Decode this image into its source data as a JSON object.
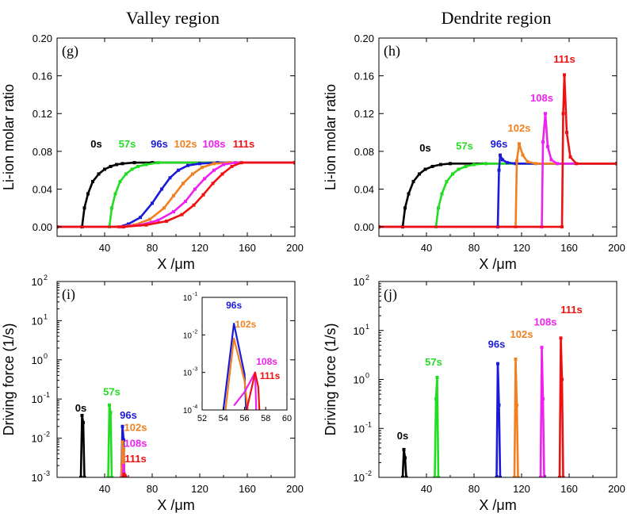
{
  "headers": {
    "left": "Valley region",
    "right": "Dendrite region"
  },
  "colors": {
    "0s": "#000000",
    "57s": "#22dd22",
    "96s": "#1a1ad8",
    "102s": "#f08020",
    "108s": "#ee22ee",
    "111s": "#ee1111"
  },
  "chart_data": [
    {
      "id": "g",
      "panel_label": "(g)",
      "type": "line",
      "title": "Valley region",
      "xlabel": "X /μm",
      "ylabel": "Li-ion molar ratio",
      "xlim": [
        0,
        200
      ],
      "ylim": [
        -0.01,
        0.2
      ],
      "xticks": [
        "40",
        "80",
        "120",
        "160",
        "200"
      ],
      "xtick_values": [
        40,
        80,
        120,
        160,
        200
      ],
      "yticks": [
        "0.00",
        "0.04",
        "0.08",
        "0.12",
        "0.16",
        "0.20"
      ],
      "ytick_values": [
        0,
        0.04,
        0.08,
        0.12,
        0.16,
        0.2
      ],
      "series": [
        {
          "name": "0s",
          "x": [
            0,
            21,
            23,
            26,
            30,
            35,
            40,
            45,
            50,
            55,
            65,
            80,
            200
          ],
          "y": [
            0,
            0,
            0.02,
            0.035,
            0.048,
            0.056,
            0.061,
            0.064,
            0.066,
            0.067,
            0.068,
            0.068,
            0.068
          ]
        },
        {
          "name": "57s",
          "x": [
            0,
            44,
            46,
            49,
            53,
            58,
            63,
            68,
            75,
            85,
            200
          ],
          "y": [
            0,
            0,
            0.02,
            0.035,
            0.048,
            0.056,
            0.061,
            0.064,
            0.066,
            0.068,
            0.068
          ]
        },
        {
          "name": "96s",
          "x": [
            0,
            52,
            60,
            70,
            80,
            88,
            95,
            102,
            110,
            120,
            135,
            200
          ],
          "y": [
            0,
            0,
            0.003,
            0.01,
            0.025,
            0.04,
            0.052,
            0.06,
            0.065,
            0.067,
            0.068,
            0.068
          ]
        },
        {
          "name": "102s",
          "x": [
            0,
            52,
            65,
            78,
            90,
            98,
            106,
            114,
            122,
            132,
            145,
            200
          ],
          "y": [
            0,
            0,
            0.002,
            0.008,
            0.02,
            0.033,
            0.046,
            0.056,
            0.063,
            0.067,
            0.068,
            0.068
          ]
        },
        {
          "name": "108s",
          "x": [
            0,
            54,
            70,
            85,
            98,
            108,
            116,
            124,
            132,
            140,
            150,
            200
          ],
          "y": [
            0,
            0,
            0.002,
            0.007,
            0.016,
            0.027,
            0.04,
            0.051,
            0.06,
            0.066,
            0.068,
            0.068
          ]
        },
        {
          "name": "111s",
          "x": [
            0,
            56,
            75,
            92,
            105,
            115,
            123,
            131,
            139,
            147,
            155,
            200
          ],
          "y": [
            0,
            0,
            0.002,
            0.006,
            0.013,
            0.023,
            0.034,
            0.046,
            0.056,
            0.064,
            0.068,
            0.068
          ]
        }
      ],
      "annotations": [
        {
          "text": "0s",
          "series": "0s",
          "x": 33,
          "y": 0.084
        },
        {
          "text": "57s",
          "series": "57s",
          "x": 59,
          "y": 0.084
        },
        {
          "text": "96s",
          "series": "96s",
          "x": 86,
          "y": 0.084
        },
        {
          "text": "102s",
          "series": "102s",
          "x": 108,
          "y": 0.084
        },
        {
          "text": "108s",
          "series": "108s",
          "x": 132,
          "y": 0.084
        },
        {
          "text": "111s",
          "series": "111s",
          "x": 157,
          "y": 0.084
        }
      ]
    },
    {
      "id": "h",
      "panel_label": "(h)",
      "type": "line",
      "title": "Dendrite region",
      "xlabel": "X /μm",
      "ylabel": "Li-ion molar ratio",
      "xlim": [
        0,
        200
      ],
      "ylim": [
        -0.01,
        0.2
      ],
      "xticks": [
        "40",
        "80",
        "120",
        "160",
        "200"
      ],
      "xtick_values": [
        40,
        80,
        120,
        160,
        200
      ],
      "yticks": [
        "0.00",
        "0.04",
        "0.08",
        "0.12",
        "0.16",
        "0.20"
      ],
      "ytick_values": [
        0,
        0.04,
        0.08,
        0.12,
        0.16,
        0.2
      ],
      "series": [
        {
          "name": "0s",
          "x": [
            0,
            20,
            22,
            25,
            29,
            34,
            39,
            45,
            52,
            60,
            200
          ],
          "y": [
            0,
            0,
            0.02,
            0.035,
            0.048,
            0.056,
            0.061,
            0.064,
            0.066,
            0.067,
            0.067
          ]
        },
        {
          "name": "57s",
          "x": [
            0,
            48,
            50,
            53,
            57,
            62,
            67,
            73,
            80,
            90,
            200
          ],
          "y": [
            0,
            0,
            0.02,
            0.035,
            0.048,
            0.056,
            0.061,
            0.064,
            0.066,
            0.067,
            0.067
          ]
        },
        {
          "name": "96s",
          "x": [
            0,
            100,
            101,
            102,
            104,
            108,
            115,
            200
          ],
          "y": [
            0,
            0,
            0.06,
            0.076,
            0.071,
            0.068,
            0.067,
            0.067
          ]
        },
        {
          "name": "102s",
          "x": [
            0,
            115,
            116,
            118,
            121,
            125,
            132,
            200
          ],
          "y": [
            0,
            0,
            0.07,
            0.088,
            0.076,
            0.069,
            0.067,
            0.067
          ]
        },
        {
          "name": "108s",
          "x": [
            0,
            137,
            138,
            140,
            142,
            145,
            150,
            200
          ],
          "y": [
            0,
            0,
            0.09,
            0.12,
            0.085,
            0.071,
            0.067,
            0.067
          ]
        },
        {
          "name": "111s",
          "x": [
            0,
            154,
            155,
            156,
            158,
            161,
            166,
            200
          ],
          "y": [
            0,
            0,
            0.12,
            0.161,
            0.1,
            0.074,
            0.067,
            0.067
          ]
        }
      ],
      "annotations": [
        {
          "text": "0s",
          "series": "0s",
          "x": 39,
          "y": 0.08
        },
        {
          "text": "57s",
          "series": "57s",
          "x": 72,
          "y": 0.082
        },
        {
          "text": "96s",
          "series": "96s",
          "x": 101,
          "y": 0.084
        },
        {
          "text": "102s",
          "series": "102s",
          "x": 118,
          "y": 0.101
        },
        {
          "text": "108s",
          "series": "108s",
          "x": 137,
          "y": 0.133
        },
        {
          "text": "111s",
          "series": "111s",
          "x": 156,
          "y": 0.174
        }
      ]
    },
    {
      "id": "i",
      "panel_label": "(i)",
      "type": "line",
      "yscale": "log",
      "xlabel": "X /μm",
      "ylabel": "Driving force (1/s)",
      "xlim": [
        0,
        200
      ],
      "ylim_exp": [
        -3,
        2
      ],
      "xticks": [
        "40",
        "80",
        "120",
        "160",
        "200"
      ],
      "xtick_values": [
        40,
        80,
        120,
        160,
        200
      ],
      "ytick_exps": [
        -3,
        -2,
        -1,
        0,
        1,
        2
      ],
      "series": [
        {
          "name": "0s",
          "x": [
            20,
            21,
            22,
            23
          ],
          "y": [
            0.001,
            0.038,
            0.025,
            0.001
          ]
        },
        {
          "name": "57s",
          "x": [
            43,
            44,
            45,
            46
          ],
          "y": [
            0.001,
            0.07,
            0.045,
            0.001
          ]
        },
        {
          "name": "96s",
          "x": [
            54,
            55,
            56,
            56.6
          ],
          "y": [
            0.001,
            0.02,
            0.009,
            0.001
          ]
        },
        {
          "name": "102s",
          "x": [
            54,
            55,
            56,
            56.6
          ],
          "y": [
            0.001,
            0.008,
            0.005,
            0.001
          ]
        },
        {
          "name": "108s",
          "x": [
            55,
            56,
            57,
            57.6
          ],
          "y": [
            0.001,
            0.002,
            0.001,
            0.001
          ]
        },
        {
          "name": "111s",
          "x": [
            55.6,
            56.4,
            57.2,
            57.7
          ],
          "y": [
            0.001,
            0.0012,
            0.0011,
            0.001
          ]
        }
      ],
      "annotations": [
        {
          "text": "0s",
          "series": "0s",
          "x": 20,
          "y_exp": -1.32
        },
        {
          "text": "57s",
          "series": "57s",
          "x": 46,
          "y_exp": -0.9
        },
        {
          "text": "96s",
          "series": "96s",
          "x": 60,
          "y_exp": -1.5
        },
        {
          "text": "102s",
          "series": "102s",
          "x": 66,
          "y_exp": -1.82
        },
        {
          "text": "108s",
          "series": "108s",
          "x": 66,
          "y_exp": -2.22
        },
        {
          "text": "111s",
          "series": "111s",
          "x": 66,
          "y_exp": -2.62
        }
      ],
      "inset": {
        "xlim": [
          52,
          60
        ],
        "ylim_exp": [
          -4,
          -1
        ],
        "xticks": [
          "52",
          "54",
          "56",
          "58",
          "60"
        ],
        "xtick_values": [
          52,
          54,
          56,
          58,
          60
        ],
        "ytick_exps": [
          -4,
          -3,
          -2,
          -1
        ],
        "series": [
          {
            "name": "96s",
            "x": [
              54,
              55,
              56,
              56.15
            ],
            "y": [
              0.0001,
              0.02,
              0.0009,
              0.0001
            ]
          },
          {
            "name": "102s",
            "x": [
              54.2,
              55,
              56,
              56.3
            ],
            "y": [
              0.0001,
              0.008,
              0.0006,
              0.0001
            ]
          },
          {
            "name": "108s",
            "x": [
              55,
              56,
              57,
              57.1
            ],
            "y": [
              0.00013,
              0.0003,
              0.001,
              0.0001
            ]
          },
          {
            "name": "111s",
            "x": [
              56.2,
              57,
              57.3,
              57.4
            ],
            "y": [
              0.0001,
              0.001,
              0.0004,
              0.0001
            ]
          }
        ],
        "annotations": [
          {
            "text": "96s",
            "series": "96s",
            "x": 55,
            "y_exp": -1.3
          },
          {
            "text": "102s",
            "series": "102s",
            "x": 56.1,
            "y_exp": -1.8
          },
          {
            "text": "108s",
            "series": "108s",
            "x": 58.1,
            "y_exp": -2.8
          },
          {
            "text": "111s",
            "series": "111s",
            "x": 58.4,
            "y_exp": -3.18
          }
        ]
      }
    },
    {
      "id": "j",
      "panel_label": "(j)",
      "type": "line",
      "yscale": "log",
      "xlabel": "X /μm",
      "ylabel": "Driving force (1/s)",
      "xlim": [
        0,
        200
      ],
      "ylim_exp": [
        -2,
        2
      ],
      "xticks": [
        "40",
        "80",
        "120",
        "160",
        "200"
      ],
      "xtick_values": [
        40,
        80,
        120,
        160,
        200
      ],
      "ytick_exps": [
        -2,
        -1,
        0,
        1,
        2
      ],
      "series": [
        {
          "name": "0s",
          "x": [
            20,
            21,
            22,
            23
          ],
          "y": [
            0.01,
            0.037,
            0.025,
            0.01
          ]
        },
        {
          "name": "57s",
          "x": [
            47,
            48,
            49,
            50
          ],
          "y": [
            0.01,
            0.4,
            1.1,
            0.01
          ]
        },
        {
          "name": "96s",
          "x": [
            99,
            100,
            101,
            102
          ],
          "y": [
            0.01,
            2.1,
            0.3,
            0.01
          ]
        },
        {
          "name": "102s",
          "x": [
            114,
            115,
            116,
            117
          ],
          "y": [
            0.01,
            2.6,
            0.3,
            0.01
          ]
        },
        {
          "name": "108s",
          "x": [
            136,
            137,
            138,
            139
          ],
          "y": [
            0.01,
            4.5,
            0.4,
            0.01
          ]
        },
        {
          "name": "111s",
          "x": [
            152,
            153,
            154,
            155
          ],
          "y": [
            0.01,
            7,
            1,
            0.01
          ]
        }
      ],
      "annotations": [
        {
          "text": "0s",
          "series": "0s",
          "x": 20,
          "y_exp": -1.22
        },
        {
          "text": "57s",
          "series": "57s",
          "x": 46,
          "y_exp": 0.28
        },
        {
          "text": "96s",
          "series": "96s",
          "x": 99,
          "y_exp": 0.65
        },
        {
          "text": "102s",
          "series": "102s",
          "x": 120,
          "y_exp": 0.85
        },
        {
          "text": "108s",
          "series": "108s",
          "x": 140,
          "y_exp": 1.1
        },
        {
          "text": "111s",
          "series": "111s",
          "x": 162,
          "y_exp": 1.35
        }
      ]
    }
  ]
}
